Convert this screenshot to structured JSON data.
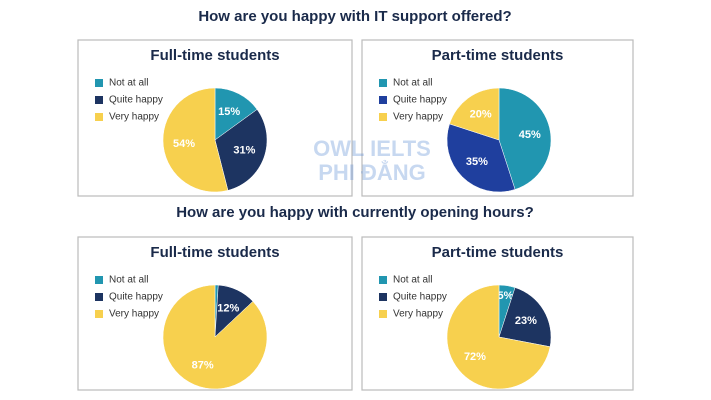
{
  "headings": [
    "How are you happy with IT support offered?",
    "How are you happy with currently opening hours?"
  ],
  "watermark": [
    "OWL IELTS",
    "PHI ĐẲNG"
  ],
  "chart_data": [
    {
      "type": "pie",
      "title": "Full-time students",
      "categories": [
        "Not at all",
        "Quite happy",
        "Very happy"
      ],
      "values": [
        15,
        31,
        54
      ],
      "value_labels": [
        "15%",
        "31%",
        "54%"
      ],
      "colors": [
        "#2196b0",
        "#1d3461",
        "#f7d04e"
      ]
    },
    {
      "type": "pie",
      "title": "Part-time students",
      "categories": [
        "Not at all",
        "Quite happy",
        "Very happy"
      ],
      "values": [
        45,
        35,
        20
      ],
      "value_labels": [
        "45%",
        "35%",
        "20%"
      ],
      "colors": [
        "#2196b0",
        "#1f3f9e",
        "#f7d04e"
      ]
    },
    {
      "type": "pie",
      "title": "Full-time students",
      "categories": [
        "Not at all",
        "Quite happy",
        "Very happy"
      ],
      "values": [
        1,
        12,
        87
      ],
      "value_labels": [
        null,
        "12%",
        "87%"
      ],
      "colors": [
        "#2196b0",
        "#1d3461",
        "#f7d04e"
      ]
    },
    {
      "type": "pie",
      "title": "Part-time students",
      "categories": [
        "Not at all",
        "Quite happy",
        "Very happy"
      ],
      "values": [
        5,
        23,
        72
      ],
      "value_labels": [
        "5%",
        "23%",
        "72%"
      ],
      "colors": [
        "#2196b0",
        "#1d3461",
        "#f7d04e"
      ]
    }
  ]
}
